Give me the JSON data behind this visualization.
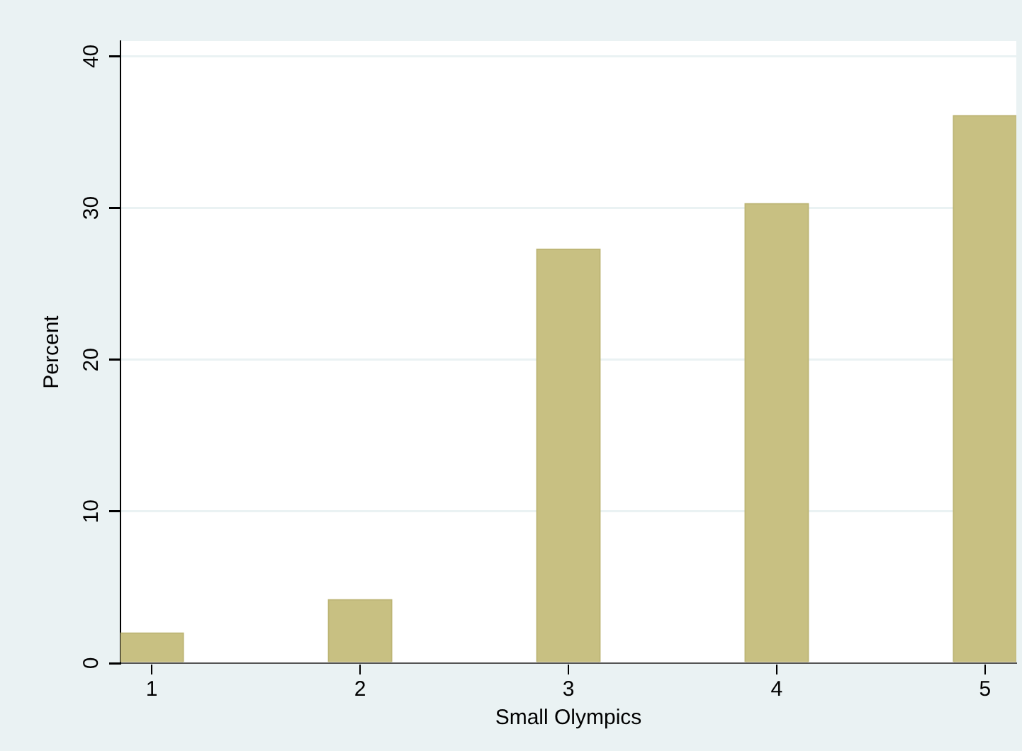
{
  "chart_data": {
    "type": "bar",
    "xlabel": "Small Olympics",
    "ylabel": "Percent",
    "x": [
      1,
      2,
      3,
      4,
      5
    ],
    "values": [
      2.0,
      4.2,
      27.3,
      30.3,
      36.1
    ],
    "color": "#c8c082",
    "xlim": [
      0.85,
      5.15
    ],
    "xticks": [
      1,
      2,
      3,
      4,
      5
    ],
    "ylim": [
      0,
      41
    ],
    "yticks": [
      0,
      10,
      20,
      30,
      40
    ],
    "grid": "y",
    "legend": false
  }
}
